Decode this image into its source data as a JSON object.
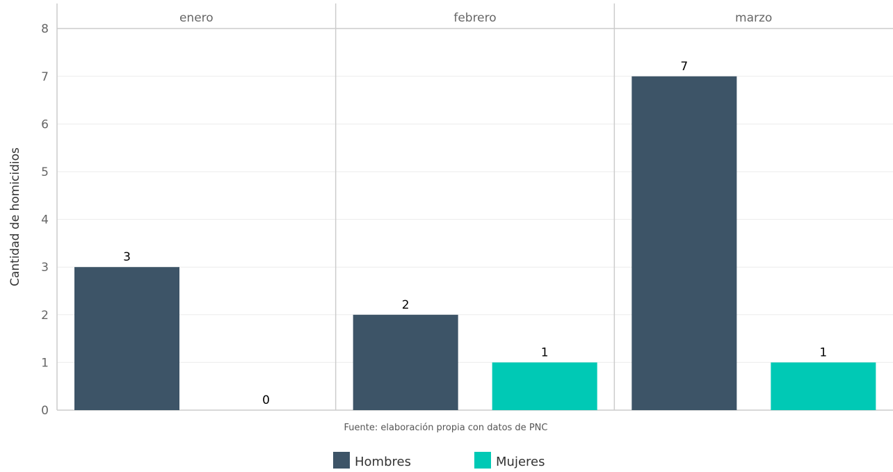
{
  "chart_data": {
    "type": "bar",
    "facets": [
      "enero",
      "febrero",
      "marzo"
    ],
    "series": [
      {
        "name": "Hombres",
        "color": "#3d5467",
        "values": [
          3,
          2,
          7
        ]
      },
      {
        "name": "Mujeres",
        "color": "#00c9b5",
        "values": [
          0,
          1,
          1
        ]
      }
    ],
    "ylabel": "Cantidad de homicidios",
    "ylim": [
      0,
      8
    ],
    "yticks": [
      0,
      1,
      2,
      3,
      4,
      5,
      6,
      7,
      8
    ],
    "caption": "Fuente: elaboración propia con datos de PNC",
    "legend_position": "bottom",
    "grid": true
  }
}
